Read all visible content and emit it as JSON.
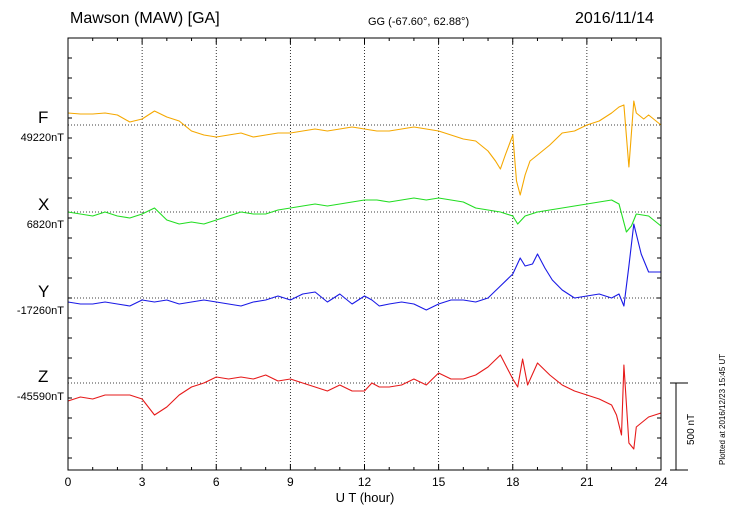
{
  "header": {
    "station": "Mawson (MAW)  [GA]",
    "coordinates": "GG (-67.60°,  62.88°)",
    "date": "2016/11/14"
  },
  "footer": {
    "plotted": "Plotted at 2016/12/23 15:45 UT"
  },
  "chart_data": {
    "type": "line",
    "title": "Mawson (MAW)  [GA]",
    "xlabel": "U T (hour)",
    "xlim": [
      0,
      24
    ],
    "xticks": [
      0,
      3,
      6,
      9,
      12,
      15,
      18,
      21,
      24
    ],
    "xtick_labels": [
      "0",
      "3",
      "6",
      "9",
      "12",
      "15",
      "18",
      "21",
      "24"
    ],
    "scale_bar": {
      "value": 500,
      "label": "500 nT"
    },
    "grid": true,
    "series": [
      {
        "name": "F",
        "baseline_label": "49220nT",
        "baseline_nT": 49220,
        "color": "#f5a800",
        "x": [
          0,
          0.5,
          1,
          1.5,
          2,
          2.5,
          3,
          3.5,
          4,
          4.5,
          5,
          5.5,
          6,
          6.5,
          7,
          7.5,
          8,
          8.5,
          9,
          9.5,
          10,
          10.5,
          11,
          11.5,
          12,
          12.5,
          13,
          13.5,
          14,
          14.5,
          15,
          15.5,
          16,
          16.5,
          17,
          17.3,
          17.5,
          17.7,
          18,
          18.15,
          18.3,
          18.5,
          18.7,
          19,
          19.5,
          20,
          20.5,
          21,
          21.5,
          22,
          22.3,
          22.5,
          22.7,
          22.9,
          23,
          23.3,
          23.5,
          24
        ],
        "y": [
          60,
          55,
          55,
          60,
          50,
          15,
          30,
          70,
          40,
          20,
          -30,
          -50,
          -60,
          -50,
          -40,
          -60,
          -50,
          -40,
          -40,
          -30,
          -20,
          -30,
          -20,
          -10,
          -20,
          -30,
          -30,
          -20,
          -10,
          -20,
          -30,
          -50,
          -70,
          -80,
          -130,
          -180,
          -220,
          -150,
          -50,
          -280,
          -350,
          -250,
          -180,
          -150,
          -100,
          -40,
          -30,
          0,
          20,
          60,
          90,
          100,
          -210,
          120,
          60,
          30,
          50,
          0
        ]
      },
      {
        "name": "X",
        "baseline_label": "6820nT",
        "baseline_nT": 6820,
        "color": "#22dd22",
        "x": [
          0,
          0.5,
          1,
          1.5,
          2,
          2.5,
          3,
          3.5,
          4,
          4.5,
          5,
          5.5,
          6,
          6.5,
          7,
          7.5,
          8,
          8.5,
          9,
          9.5,
          10,
          10.5,
          11,
          11.5,
          12,
          12.5,
          13,
          13.5,
          14,
          14.5,
          15,
          15.5,
          16,
          16.5,
          17,
          17.5,
          18,
          18.2,
          18.5,
          19,
          19.5,
          20,
          20.5,
          21,
          21.5,
          22,
          22.3,
          22.6,
          22.8,
          23,
          23.5,
          24
        ],
        "y": [
          0,
          -10,
          -20,
          0,
          -20,
          -30,
          -10,
          20,
          -40,
          -60,
          -50,
          -60,
          -40,
          -20,
          0,
          -10,
          -10,
          10,
          20,
          30,
          40,
          30,
          40,
          50,
          60,
          60,
          50,
          60,
          70,
          60,
          70,
          60,
          50,
          20,
          10,
          0,
          -20,
          -60,
          -20,
          0,
          10,
          20,
          30,
          40,
          50,
          60,
          40,
          -100,
          -70,
          -10,
          -20,
          -70
        ]
      },
      {
        "name": "Y",
        "baseline_label": "-17260nT",
        "baseline_nT": -17260,
        "color": "#1a1ae6",
        "x": [
          0,
          0.5,
          1,
          1.5,
          2,
          2.5,
          3,
          3.5,
          4,
          4.5,
          5,
          5.5,
          6,
          6.5,
          7,
          7.5,
          8,
          8.5,
          9,
          9.5,
          10,
          10.5,
          11,
          11.5,
          12,
          12.3,
          12.6,
          13,
          13.5,
          14,
          14.5,
          15,
          15.5,
          16,
          16.5,
          17,
          17.5,
          18,
          18.3,
          18.5,
          18.8,
          19,
          19.3,
          19.6,
          20,
          20.5,
          21,
          21.5,
          22,
          22.3,
          22.5,
          22.7,
          22.9,
          23.2,
          23.5,
          24
        ],
        "y": [
          -20,
          -30,
          -30,
          -20,
          -30,
          -40,
          -10,
          -20,
          -10,
          -30,
          -20,
          -10,
          -20,
          -30,
          -40,
          -20,
          -10,
          10,
          -10,
          20,
          30,
          -20,
          20,
          -30,
          10,
          -10,
          -40,
          -30,
          -20,
          -30,
          -60,
          -30,
          -10,
          -10,
          -20,
          0,
          60,
          120,
          200,
          160,
          170,
          220,
          150,
          90,
          40,
          0,
          10,
          20,
          0,
          20,
          -40,
          160,
          370,
          220,
          130,
          130
        ]
      },
      {
        "name": "Z",
        "baseline_label": "-45590nT",
        "baseline_nT": -45590,
        "color": "#e61a1a",
        "x": [
          0,
          0.5,
          1,
          1.5,
          2,
          2.5,
          3,
          3.5,
          4,
          4.5,
          5,
          5.5,
          6,
          6.5,
          7,
          7.5,
          8,
          8.5,
          9,
          9.5,
          10,
          10.5,
          11,
          11.5,
          12,
          12.3,
          12.6,
          13,
          13.5,
          14,
          14.5,
          15,
          15.5,
          16,
          16.5,
          17,
          17.5,
          18,
          18.2,
          18.4,
          18.6,
          19,
          19.5,
          20,
          20.5,
          21,
          21.5,
          22,
          22.2,
          22.4,
          22.5,
          22.7,
          22.9,
          23,
          23.5,
          24
        ],
        "y": [
          -90,
          -70,
          -80,
          -60,
          -60,
          -60,
          -80,
          -160,
          -120,
          -60,
          -20,
          0,
          30,
          20,
          30,
          20,
          40,
          10,
          20,
          0,
          -20,
          -40,
          -10,
          -40,
          -40,
          0,
          -20,
          -20,
          -10,
          20,
          -10,
          50,
          20,
          20,
          40,
          80,
          140,
          20,
          -20,
          120,
          -10,
          100,
          40,
          -10,
          -40,
          -60,
          -80,
          -110,
          -160,
          -260,
          90,
          -300,
          -330,
          -220,
          -170,
          -150
        ]
      }
    ]
  }
}
